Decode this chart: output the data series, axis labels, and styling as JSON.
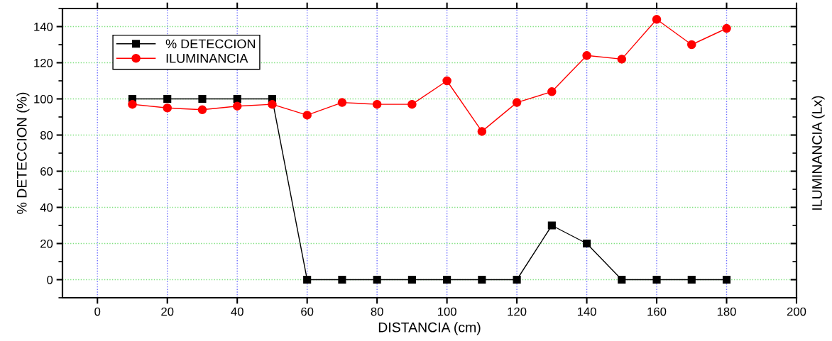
{
  "chart_data": {
    "type": "line",
    "xlabel": "DISTANCIA (cm)",
    "ylabel": "% DETECCION (%)",
    "y2label": "ILUMINANCIA (Lx)",
    "x": [
      10,
      20,
      30,
      40,
      50,
      60,
      70,
      80,
      90,
      100,
      110,
      120,
      130,
      140,
      150,
      160,
      170,
      180
    ],
    "series": [
      {
        "name": "% DETECCION",
        "color": "#000000",
        "marker": "square",
        "values": [
          100,
          100,
          100,
          100,
          100,
          0,
          0,
          0,
          0,
          0,
          0,
          0,
          30,
          20,
          0,
          0,
          0,
          0
        ]
      },
      {
        "name": "ILUMINANCIA",
        "color": "#ff0000",
        "marker": "circle",
        "values": [
          97,
          95,
          94,
          96,
          97,
          91,
          98,
          97,
          97,
          110,
          82,
          98,
          104,
          124,
          122,
          144,
          130,
          139
        ]
      }
    ],
    "xlim": [
      -10,
      200
    ],
    "xticks": [
      0,
      20,
      40,
      60,
      80,
      100,
      120,
      140,
      160,
      180,
      200
    ],
    "ylim": [
      -10,
      150
    ],
    "yticks": [
      0,
      20,
      40,
      60,
      80,
      100,
      120,
      140
    ],
    "grid": true,
    "legend": "top left",
    "line_style": "solid"
  }
}
